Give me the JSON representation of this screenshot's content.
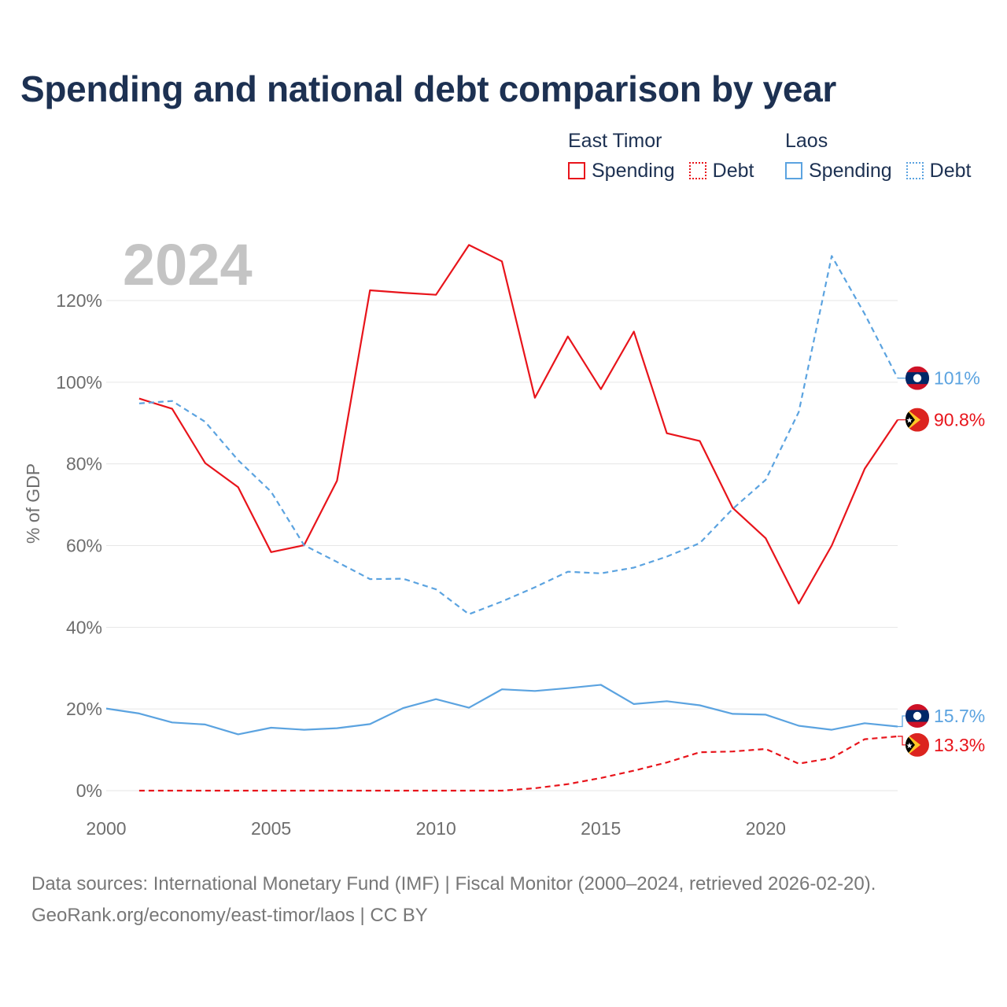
{
  "title": "Spending and national debt comparison by year",
  "legend": {
    "groups": [
      {
        "name": "East Timor",
        "color": "#e8141b",
        "spending_label": "Spending",
        "debt_label": "Debt"
      },
      {
        "name": "Laos",
        "color": "#5ba3e0",
        "spending_label": "Spending",
        "debt_label": "Debt"
      }
    ]
  },
  "chart_data": {
    "type": "line",
    "year_label": "2024",
    "ylabel": "% of GDP",
    "xlim": [
      2000,
      2024
    ],
    "ylim": [
      0,
      135
    ],
    "x_ticks": [
      "2000",
      "2005",
      "2010",
      "2015",
      "2020"
    ],
    "y_ticks": [
      "0%",
      "20%",
      "40%",
      "60%",
      "80%",
      "100%",
      "120%"
    ],
    "series": [
      {
        "name": "East Timor Spending",
        "color": "#e8141b",
        "dashed": false,
        "x": [
          2001,
          2002,
          2003,
          2004,
          2005,
          2006,
          2007,
          2008,
          2009,
          2010,
          2011,
          2012,
          2013,
          2014,
          2015,
          2016,
          2017,
          2018,
          2019,
          2020,
          2021,
          2022,
          2023,
          2024
        ],
        "values": [
          96,
          93.5,
          80.2,
          74.3,
          58.4,
          60.1,
          75.9,
          122.5,
          121.9,
          121.4,
          133.6,
          129.6,
          96.2,
          111.2,
          98.3,
          112.4,
          87.5,
          85.6,
          69.2,
          61.8,
          45.8,
          60,
          78.8,
          90.8
        ]
      },
      {
        "name": "East Timor Debt",
        "color": "#e8141b",
        "dashed": true,
        "x": [
          2001,
          2002,
          2003,
          2004,
          2005,
          2006,
          2007,
          2008,
          2009,
          2010,
          2011,
          2012,
          2013,
          2014,
          2015,
          2016,
          2017,
          2018,
          2019,
          2020,
          2021,
          2022,
          2023,
          2024
        ],
        "values": [
          0,
          0,
          0,
          0,
          0,
          0,
          0,
          0,
          0,
          0,
          0,
          0,
          0.6,
          1.6,
          3.1,
          4.9,
          6.9,
          9.4,
          9.6,
          10.2,
          6.6,
          8,
          12.6,
          13.3
        ]
      },
      {
        "name": "Laos Spending",
        "color": "#5ba3e0",
        "dashed": false,
        "x": [
          2000,
          2001,
          2002,
          2003,
          2004,
          2005,
          2006,
          2007,
          2008,
          2009,
          2010,
          2011,
          2012,
          2013,
          2014,
          2015,
          2016,
          2017,
          2018,
          2019,
          2020,
          2021,
          2022,
          2023,
          2024
        ],
        "values": [
          20.1,
          18.9,
          16.7,
          16.2,
          13.8,
          15.4,
          14.9,
          15.3,
          16.3,
          20.2,
          22.4,
          20.3,
          24.8,
          24.4,
          25.1,
          25.9,
          21.2,
          21.9,
          20.9,
          18.8,
          18.6,
          15.9,
          14.9,
          16.5,
          15.7
        ]
      },
      {
        "name": "Laos Debt",
        "color": "#5ba3e0",
        "dashed": true,
        "x": [
          2001,
          2002,
          2003,
          2004,
          2005,
          2006,
          2007,
          2008,
          2009,
          2010,
          2011,
          2012,
          2013,
          2014,
          2015,
          2016,
          2017,
          2018,
          2019,
          2020,
          2021,
          2022,
          2023,
          2024
        ],
        "values": [
          94.8,
          95.4,
          90.3,
          80.9,
          73.2,
          60.1,
          56,
          51.8,
          51.9,
          49.3,
          43.2,
          46.3,
          49.8,
          53.6,
          53.2,
          54.6,
          57.3,
          60.6,
          69,
          76.1,
          92.7,
          130.9,
          116.7,
          101
        ]
      }
    ],
    "end_labels": [
      {
        "text": "101%",
        "color": "#5ba3e0",
        "flag": "laos",
        "value": 101
      },
      {
        "text": "90.8%",
        "color": "#e8141b",
        "flag": "east-timor",
        "value": 90.8
      },
      {
        "text": "15.7%",
        "color": "#5ba3e0",
        "flag": "laos",
        "value": 15.7,
        "label_value": 18.3
      },
      {
        "text": "13.3%",
        "color": "#e8141b",
        "flag": "east-timor",
        "value": 13.3,
        "label_value": 11.2
      }
    ]
  },
  "footer": {
    "line1": "Data sources: International Monetary Fund (IMF) | Fiscal Monitor (2000–2024, retrieved 2026-02-20).",
    "line2": "GeoRank.org/economy/east-timor/laos | CC BY"
  }
}
